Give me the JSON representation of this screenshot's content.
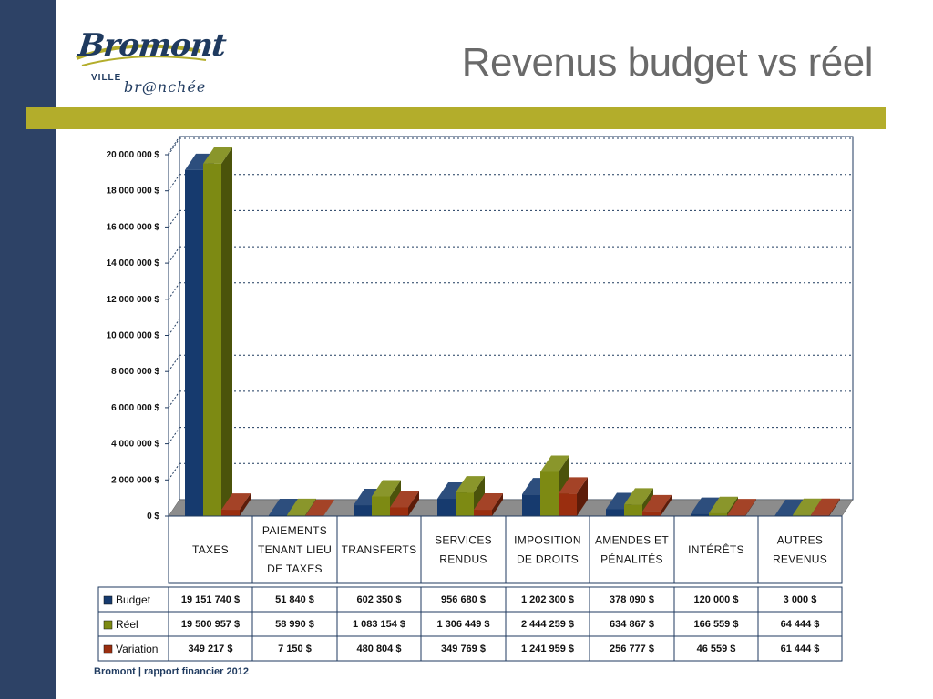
{
  "slide": {
    "title": "Revenus budget vs réel",
    "footer": "Bromont | rapport financier 2012"
  },
  "logo": {
    "main": "Bromont",
    "ville": "VILLE",
    "tagline": "br@nchée"
  },
  "colors": {
    "sidebar": "#2d4266",
    "rule": "#b3ad2b",
    "budget": "#163a6e",
    "reel": "#7d8a13",
    "variation": "#9a2e0f"
  },
  "chart_data": {
    "type": "bar",
    "title": "",
    "xlabel": "",
    "ylabel": "",
    "ylim": [
      0,
      20000000
    ],
    "yticks": [
      "0 $",
      "2 000 000 $",
      "4 000 000 $",
      "6 000 000 $",
      "8 000 000 $",
      "10 000 000 $",
      "12 000 000 $",
      "14 000 000 $",
      "16 000 000 $",
      "18 000 000 $",
      "20 000 000 $"
    ],
    "grid": true,
    "categories": [
      [
        "TAXES"
      ],
      [
        "PAIEMENTS",
        "TENANT LIEU",
        "DE TAXES"
      ],
      [
        "TRANSFERTS"
      ],
      [
        "SERVICES",
        "RENDUS"
      ],
      [
        "IMPOSITION",
        "DE DROITS"
      ],
      [
        "AMENDES ET",
        "PÉNALITÉS"
      ],
      [
        "INTÉRÊTS"
      ],
      [
        "AUTRES",
        "REVENUS"
      ]
    ],
    "series": [
      {
        "name": "Budget",
        "values": [
          19151740,
          51840,
          602350,
          956680,
          1202300,
          378090,
          120000,
          3000
        ],
        "labels": [
          "19 151 740 $",
          "51 840 $",
          "602 350 $",
          "956 680 $",
          "1 202 300 $",
          "378 090 $",
          "120 000 $",
          "3 000 $"
        ]
      },
      {
        "name": "Réel",
        "values": [
          19500957,
          58990,
          1083154,
          1306449,
          2444259,
          634867,
          166559,
          64444
        ],
        "labels": [
          "19 500 957 $",
          "58 990 $",
          "1 083 154 $",
          "1 306 449 $",
          "2 444 259 $",
          "634 867 $",
          "166 559 $",
          "64 444 $"
        ]
      },
      {
        "name": "Variation",
        "values": [
          349217,
          7150,
          480804,
          349769,
          1241959,
          256777,
          46559,
          61444
        ],
        "labels": [
          "349 217 $",
          "7 150 $",
          "480 804 $",
          "349 769 $",
          "1 241 959 $",
          "256 777 $",
          "46 559 $",
          "61 444 $"
        ]
      }
    ]
  }
}
